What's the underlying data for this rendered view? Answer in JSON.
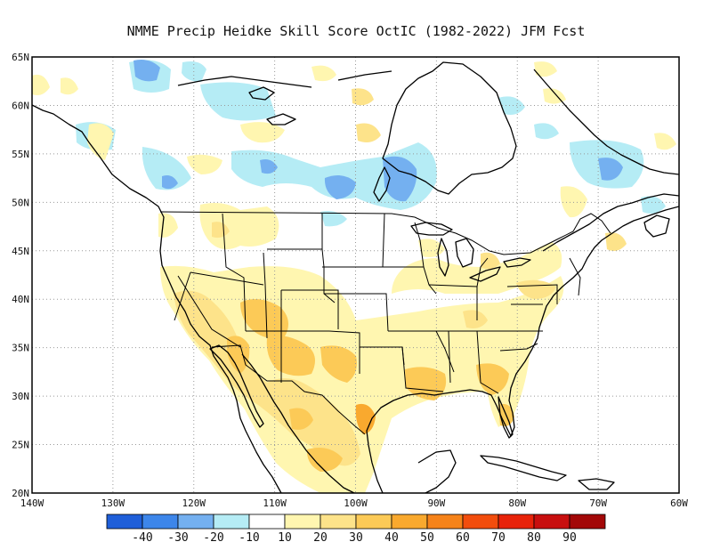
{
  "title": "NMME Precip Heidke Skill Score OctIC (1982-2022) JFM Fcst",
  "map": {
    "lon_range": [
      -140,
      -60
    ],
    "lat_range": [
      20,
      65
    ],
    "lat_ticks": [
      {
        "value": 65,
        "label": "65N"
      },
      {
        "value": 60,
        "label": "60N"
      },
      {
        "value": 55,
        "label": "55N"
      },
      {
        "value": 50,
        "label": "50N"
      },
      {
        "value": 45,
        "label": "45N"
      },
      {
        "value": 40,
        "label": "40N"
      },
      {
        "value": 35,
        "label": "35N"
      },
      {
        "value": 30,
        "label": "30N"
      },
      {
        "value": 25,
        "label": "25N"
      },
      {
        "value": 20,
        "label": "20N"
      }
    ],
    "lon_ticks": [
      {
        "value": -140,
        "label": "140W"
      },
      {
        "value": -130,
        "label": "130W"
      },
      {
        "value": -120,
        "label": "120W"
      },
      {
        "value": -110,
        "label": "110W"
      },
      {
        "value": -100,
        "label": "100W"
      },
      {
        "value": -90,
        "label": "90W"
      },
      {
        "value": -80,
        "label": "80W"
      },
      {
        "value": -70,
        "label": "70W"
      },
      {
        "value": -60,
        "label": "60W"
      }
    ],
    "grid": "dotted"
  },
  "colorbar": {
    "colors": [
      "#1f5fd9",
      "#3d86ea",
      "#74b0f0",
      "#b5ecf5",
      "#ffffff",
      "#fff6b0",
      "#fde38a",
      "#fcca57",
      "#f9a92e",
      "#f6831a",
      "#f24d0d",
      "#e8230a",
      "#c80f0f",
      "#a30808"
    ],
    "labels": [
      "-40",
      "-30",
      "-20",
      "-10",
      "10",
      "20",
      "30",
      "40",
      "50",
      "60",
      "70",
      "80",
      "90"
    ]
  }
}
